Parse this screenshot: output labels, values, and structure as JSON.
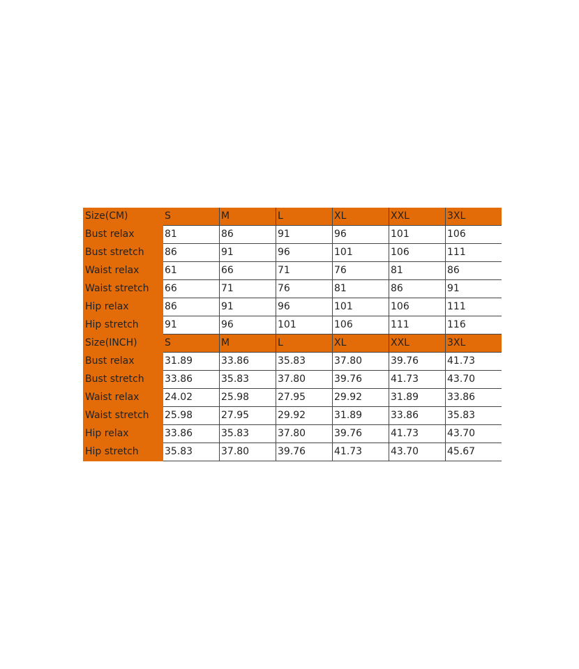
{
  "accent_color": "#E36C09",
  "tables": [
    {
      "header": [
        "Size(CM)",
        "S",
        "M",
        "L",
        "XL",
        "XXL",
        "3XL"
      ],
      "rows": [
        [
          "Bust relax",
          "81",
          "86",
          "91",
          "96",
          "101",
          "106"
        ],
        [
          "Bust stretch",
          "86",
          "91",
          "96",
          "101",
          "106",
          "111"
        ],
        [
          "Waist relax",
          "61",
          "66",
          "71",
          "76",
          "81",
          "86"
        ],
        [
          "Waist stretch",
          "66",
          "71",
          "76",
          "81",
          "86",
          "91"
        ],
        [
          "Hip relax",
          "86",
          "91",
          "96",
          "101",
          "106",
          "111"
        ],
        [
          "Hip stretch",
          "91",
          "96",
          "101",
          "106",
          "111",
          "116"
        ]
      ]
    },
    {
      "header": [
        "Size(INCH)",
        "S",
        "M",
        "L",
        "XL",
        "XXL",
        "3XL"
      ],
      "rows": [
        [
          "Bust relax",
          "31.89",
          "33.86",
          "35.83",
          "37.80",
          "39.76",
          "41.73"
        ],
        [
          "Bust stretch",
          "33.86",
          "35.83",
          "37.80",
          "39.76",
          "41.73",
          "43.70"
        ],
        [
          "Waist relax",
          "24.02",
          "25.98",
          "27.95",
          "29.92",
          "31.89",
          "33.86"
        ],
        [
          "Waist stretch",
          "25.98",
          "27.95",
          "29.92",
          "31.89",
          "33.86",
          "35.83"
        ],
        [
          "Hip relax",
          "33.86",
          "35.83",
          "37.80",
          "39.76",
          "41.73",
          "43.70"
        ],
        [
          "Hip stretch",
          "35.83",
          "37.80",
          "39.76",
          "41.73",
          "43.70",
          "45.67"
        ]
      ]
    }
  ]
}
